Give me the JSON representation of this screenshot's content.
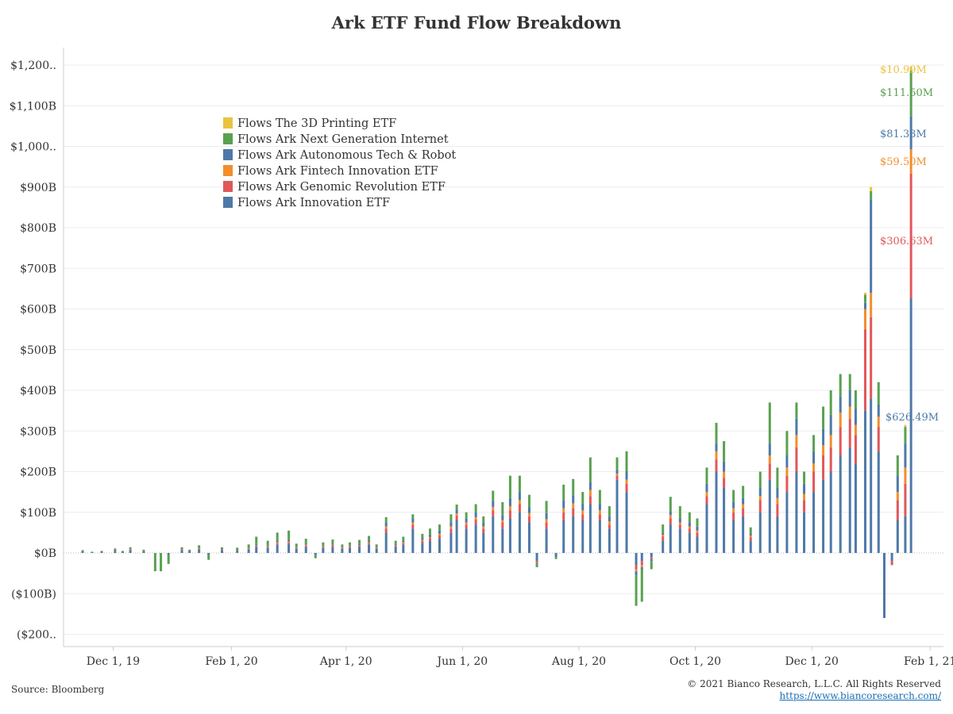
{
  "chart_data": {
    "type": "bar",
    "stacked": true,
    "title": "Ark ETF Fund Flow Breakdown",
    "xlabel": "",
    "ylabel": "",
    "ylim": [
      -200,
      1250
    ],
    "y_ticks": [
      {
        "value": 1200,
        "label": "$1,200.."
      },
      {
        "value": 1100,
        "label": "$1,100B"
      },
      {
        "value": 1000,
        "label": "$1,000.."
      },
      {
        "value": 900,
        "label": "$900B"
      },
      {
        "value": 800,
        "label": "$800B"
      },
      {
        "value": 700,
        "label": "$700B"
      },
      {
        "value": 600,
        "label": "$600B"
      },
      {
        "value": 500,
        "label": "$500B"
      },
      {
        "value": 400,
        "label": "$400B"
      },
      {
        "value": 300,
        "label": "$300B"
      },
      {
        "value": 200,
        "label": "$200B"
      },
      {
        "value": 100,
        "label": "$100B"
      },
      {
        "value": 0,
        "label": "$0B"
      },
      {
        "value": -100,
        "label": "($100B)"
      },
      {
        "value": -200,
        "label": "($200.."
      }
    ],
    "x_ticks": [
      {
        "date": "2019-12-01",
        "label": "Dec 1, 19"
      },
      {
        "date": "2020-02-01",
        "label": "Feb 1, 20"
      },
      {
        "date": "2020-04-01",
        "label": "Apr 1, 20"
      },
      {
        "date": "2020-06-01",
        "label": "Jun 1, 20"
      },
      {
        "date": "2020-08-01",
        "label": "Aug 1, 20"
      },
      {
        "date": "2020-10-01",
        "label": "Oct 1, 20"
      },
      {
        "date": "2020-12-01",
        "label": "Dec 1, 20"
      },
      {
        "date": "2021-02-01",
        "label": "Feb 1, 21"
      }
    ],
    "x_range": [
      "2019-11-05",
      "2021-02-08"
    ],
    "grid": true,
    "legend_position": "top-left",
    "legend": [
      {
        "name": "Flows The 3D Printing ETF",
        "color": "#e8c43e"
      },
      {
        "name": "Flows Ark Next Generation Internet",
        "color": "#59a14f"
      },
      {
        "name": "Flows Ark Autonomous Tech & Robot",
        "color": "#4e79a7"
      },
      {
        "name": "Flows Ark Fintech Innovation ETF",
        "color": "#f28e2b"
      },
      {
        "name": "Flows Ark Genomic Revolution ETF",
        "color": "#e15759"
      },
      {
        "name": "Flows Ark Innovation ETF",
        "color": "#4e79a7"
      }
    ],
    "series_order_bottom_to_top": [
      "Flows Ark Innovation ETF",
      "Flows Ark Genomic Revolution ETF",
      "Flows Ark Fintech Innovation ETF",
      "Flows Ark Autonomous Tech & Robot",
      "Flows Ark Next Generation Internet",
      "Flows The 3D Printing ETF"
    ],
    "bars": [
      {
        "date": "2019-11-15",
        "v": [
          4,
          1,
          0,
          0,
          2,
          0
        ]
      },
      {
        "date": "2019-11-20",
        "v": [
          2,
          0,
          0,
          0,
          1,
          0
        ]
      },
      {
        "date": "2019-11-25",
        "v": [
          3,
          1,
          0,
          0,
          1,
          0
        ]
      },
      {
        "date": "2019-12-02",
        "v": [
          5,
          2,
          0,
          1,
          3,
          0
        ]
      },
      {
        "date": "2019-12-06",
        "v": [
          3,
          0,
          0,
          0,
          2,
          0
        ]
      },
      {
        "date": "2019-12-10",
        "v": [
          6,
          2,
          1,
          1,
          4,
          0
        ]
      },
      {
        "date": "2019-12-17",
        "v": [
          4,
          1,
          0,
          0,
          3,
          0
        ]
      },
      {
        "date": "2019-12-23",
        "v": [
          0,
          0,
          0,
          0,
          -45,
          0
        ]
      },
      {
        "date": "2019-12-26",
        "v": [
          0,
          0,
          0,
          0,
          -45,
          0
        ]
      },
      {
        "date": "2019-12-30",
        "v": [
          -5,
          0,
          0,
          0,
          -22,
          0
        ]
      },
      {
        "date": "2020-01-06",
        "v": [
          6,
          2,
          0,
          1,
          5,
          0
        ]
      },
      {
        "date": "2020-01-10",
        "v": [
          4,
          1,
          0,
          0,
          3,
          0
        ]
      },
      {
        "date": "2020-01-15",
        "v": [
          8,
          2,
          1,
          2,
          6,
          0
        ]
      },
      {
        "date": "2020-01-20",
        "v": [
          -5,
          0,
          0,
          0,
          -12,
          0
        ]
      },
      {
        "date": "2020-01-27",
        "v": [
          6,
          2,
          0,
          1,
          5,
          0
        ]
      },
      {
        "date": "2020-02-04",
        "v": [
          5,
          1,
          0,
          1,
          6,
          0
        ]
      },
      {
        "date": "2020-02-10",
        "v": [
          8,
          2,
          1,
          2,
          8,
          0
        ]
      },
      {
        "date": "2020-02-14",
        "v": [
          15,
          3,
          1,
          3,
          18,
          0
        ]
      },
      {
        "date": "2020-02-20",
        "v": [
          12,
          3,
          1,
          2,
          12,
          0
        ]
      },
      {
        "date": "2020-02-25",
        "v": [
          20,
          4,
          2,
          4,
          20,
          0
        ]
      },
      {
        "date": "2020-03-02",
        "v": [
          22,
          4,
          2,
          4,
          23,
          0
        ]
      },
      {
        "date": "2020-03-06",
        "v": [
          10,
          2,
          1,
          2,
          8,
          0
        ]
      },
      {
        "date": "2020-03-11",
        "v": [
          15,
          3,
          2,
          3,
          12,
          0
        ]
      },
      {
        "date": "2020-03-16",
        "v": [
          -5,
          0,
          0,
          0,
          -8,
          0
        ]
      },
      {
        "date": "2020-03-20",
        "v": [
          12,
          3,
          1,
          2,
          8,
          0
        ]
      },
      {
        "date": "2020-03-25",
        "v": [
          15,
          4,
          1,
          3,
          10,
          0
        ]
      },
      {
        "date": "2020-03-30",
        "v": [
          10,
          2,
          1,
          2,
          6,
          0
        ]
      },
      {
        "date": "2020-04-03",
        "v": [
          12,
          3,
          1,
          2,
          8,
          0
        ]
      },
      {
        "date": "2020-04-08",
        "v": [
          15,
          3,
          1,
          3,
          10,
          0
        ]
      },
      {
        "date": "2020-04-13",
        "v": [
          20,
          4,
          2,
          4,
          12,
          0
        ]
      },
      {
        "date": "2020-04-17",
        "v": [
          10,
          2,
          1,
          2,
          6,
          0
        ]
      },
      {
        "date": "2020-04-22",
        "v": [
          50,
          10,
          5,
          10,
          13,
          0
        ]
      },
      {
        "date": "2020-04-27",
        "v": [
          15,
          3,
          1,
          3,
          8,
          0
        ]
      },
      {
        "date": "2020-05-01",
        "v": [
          20,
          4,
          2,
          4,
          10,
          0
        ]
      },
      {
        "date": "2020-05-06",
        "v": [
          60,
          10,
          5,
          10,
          10,
          0
        ]
      },
      {
        "date": "2020-05-11",
        "v": [
          25,
          5,
          2,
          5,
          10,
          0
        ]
      },
      {
        "date": "2020-05-15",
        "v": [
          30,
          6,
          3,
          6,
          15,
          0
        ]
      },
      {
        "date": "2020-05-20",
        "v": [
          35,
          8,
          4,
          8,
          15,
          0
        ]
      },
      {
        "date": "2020-05-26",
        "v": [
          50,
          10,
          5,
          10,
          20,
          0
        ]
      },
      {
        "date": "2020-05-29",
        "v": [
          80,
          12,
          5,
          10,
          12,
          0
        ]
      },
      {
        "date": "2020-06-03",
        "v": [
          60,
          10,
          5,
          10,
          15,
          0
        ]
      },
      {
        "date": "2020-06-08",
        "v": [
          70,
          12,
          6,
          12,
          20,
          0
        ]
      },
      {
        "date": "2020-06-12",
        "v": [
          50,
          10,
          5,
          10,
          15,
          0
        ]
      },
      {
        "date": "2020-06-17",
        "v": [
          90,
          15,
          8,
          15,
          25,
          0
        ]
      },
      {
        "date": "2020-06-22",
        "v": [
          60,
          15,
          6,
          12,
          32,
          0
        ]
      },
      {
        "date": "2020-06-26",
        "v": [
          85,
          20,
          10,
          20,
          55,
          0
        ]
      },
      {
        "date": "2020-07-01",
        "v": [
          100,
          20,
          10,
          20,
          40,
          0
        ]
      },
      {
        "date": "2020-07-06",
        "v": [
          75,
          15,
          8,
          15,
          30,
          0
        ]
      },
      {
        "date": "2020-07-10",
        "v": [
          -20,
          -5,
          0,
          0,
          -10,
          0
        ]
      },
      {
        "date": "2020-07-15",
        "v": [
          60,
          15,
          8,
          15,
          30,
          0
        ]
      },
      {
        "date": "2020-07-20",
        "v": [
          -10,
          0,
          0,
          0,
          -5,
          0
        ]
      },
      {
        "date": "2020-07-24",
        "v": [
          80,
          20,
          10,
          20,
          38,
          0
        ]
      },
      {
        "date": "2020-07-29",
        "v": [
          90,
          20,
          12,
          20,
          40,
          0
        ]
      },
      {
        "date": "2020-08-03",
        "v": [
          80,
          15,
          10,
          15,
          30,
          0
        ]
      },
      {
        "date": "2020-08-07",
        "v": [
          120,
          20,
          15,
          20,
          60,
          0
        ]
      },
      {
        "date": "2020-08-12",
        "v": [
          80,
          15,
          10,
          15,
          35,
          0
        ]
      },
      {
        "date": "2020-08-17",
        "v": [
          60,
          10,
          8,
          12,
          25,
          0
        ]
      },
      {
        "date": "2020-08-21",
        "v": [
          180,
          10,
          5,
          10,
          30,
          0
        ]
      },
      {
        "date": "2020-08-26",
        "v": [
          150,
          20,
          10,
          20,
          50,
          0
        ]
      },
      {
        "date": "2020-08-31",
        "v": [
          -30,
          -10,
          -5,
          -10,
          -75,
          0
        ]
      },
      {
        "date": "2020-09-03",
        "v": [
          -20,
          -10,
          -5,
          -5,
          -80,
          0
        ]
      },
      {
        "date": "2020-09-08",
        "v": [
          -10,
          -5,
          0,
          -5,
          -20,
          0
        ]
      },
      {
        "date": "2020-09-14",
        "v": [
          30,
          10,
          5,
          5,
          20,
          0
        ]
      },
      {
        "date": "2020-09-18",
        "v": [
          70,
          15,
          8,
          10,
          35,
          0
        ]
      },
      {
        "date": "2020-09-23",
        "v": [
          60,
          10,
          5,
          10,
          30,
          0
        ]
      },
      {
        "date": "2020-09-28",
        "v": [
          50,
          10,
          5,
          10,
          25,
          0
        ]
      },
      {
        "date": "2020-10-02",
        "v": [
          40,
          10,
          5,
          10,
          20,
          0
        ]
      },
      {
        "date": "2020-10-07",
        "v": [
          120,
          20,
          10,
          20,
          40,
          0
        ]
      },
      {
        "date": "2020-10-12",
        "v": [
          200,
          30,
          20,
          20,
          50,
          0
        ]
      },
      {
        "date": "2020-10-16",
        "v": [
          160,
          25,
          15,
          25,
          50,
          0
        ]
      },
      {
        "date": "2020-10-21",
        "v": [
          80,
          20,
          10,
          15,
          30,
          0
        ]
      },
      {
        "date": "2020-10-26",
        "v": [
          90,
          20,
          10,
          15,
          30,
          0
        ]
      },
      {
        "date": "2020-10-30",
        "v": [
          30,
          8,
          5,
          5,
          15,
          0
        ]
      },
      {
        "date": "2020-11-04",
        "v": [
          100,
          30,
          10,
          20,
          40,
          0
        ]
      },
      {
        "date": "2020-11-09",
        "v": [
          180,
          40,
          20,
          30,
          100,
          0
        ]
      },
      {
        "date": "2020-11-13",
        "v": [
          90,
          30,
          15,
          25,
          50,
          0
        ]
      },
      {
        "date": "2020-11-18",
        "v": [
          150,
          40,
          20,
          30,
          60,
          0
        ]
      },
      {
        "date": "2020-11-23",
        "v": [
          200,
          60,
          30,
          40,
          40,
          0
        ]
      },
      {
        "date": "2020-11-27",
        "v": [
          100,
          30,
          15,
          25,
          30,
          0
        ]
      },
      {
        "date": "2020-12-02",
        "v": [
          150,
          50,
          20,
          30,
          40,
          0
        ]
      },
      {
        "date": "2020-12-07",
        "v": [
          180,
          60,
          25,
          40,
          55,
          0
        ]
      },
      {
        "date": "2020-12-11",
        "v": [
          200,
          60,
          30,
          50,
          60,
          0
        ]
      },
      {
        "date": "2020-12-16",
        "v": [
          240,
          70,
          35,
          40,
          55,
          0
        ]
      },
      {
        "date": "2020-12-21",
        "v": [
          260,
          70,
          30,
          40,
          40,
          0
        ]
      },
      {
        "date": "2020-12-24",
        "v": [
          220,
          70,
          25,
          40,
          45,
          0
        ]
      },
      {
        "date": "2020-12-29",
        "v": [
          350,
          200,
          50,
          15,
          20,
          5
        ]
      },
      {
        "date": "2021-01-01",
        "v": [
          380,
          200,
          60,
          230,
          20,
          10
        ]
      },
      {
        "date": "2021-01-05",
        "v": [
          250,
          60,
          25,
          30,
          55,
          0
        ]
      },
      {
        "date": "2021-01-08",
        "v": [
          -160,
          0,
          0,
          0,
          0,
          0
        ]
      },
      {
        "date": "2021-01-12",
        "v": [
          -20,
          -10,
          0,
          0,
          0,
          0
        ]
      },
      {
        "date": "2021-01-15",
        "v": [
          80,
          50,
          20,
          40,
          50,
          0
        ]
      },
      {
        "date": "2021-01-19",
        "v": [
          90,
          80,
          40,
          60,
          40,
          5
        ]
      },
      {
        "date": "2021-01-22",
        "v": [
          626.49,
          306.63,
          59.5,
          81.33,
          111.5,
          10.99
        ]
      }
    ],
    "annotations": [
      {
        "label": "$10.99M",
        "series": "Flows The 3D Printing ETF",
        "color": "#e8c43e"
      },
      {
        "label": "$111.50M",
        "series": "Flows Ark Next Generation Internet",
        "color": "#59a14f"
      },
      {
        "label": "$81.33M",
        "series": "Flows Ark Autonomous Tech & Robot",
        "color": "#4e79a7"
      },
      {
        "label": "$59.50M",
        "series": "Flows Ark Fintech Innovation ETF",
        "color": "#f28e2b"
      },
      {
        "label": "$306.63M",
        "series": "Flows Ark Genomic Revolution ETF",
        "color": "#e15759"
      },
      {
        "label": "$626.49M",
        "series": "Flows Ark Innovation ETF",
        "color": "#4e79a7"
      }
    ]
  },
  "footer": {
    "source": "Source: Bloomberg",
    "copyright": "© 2021 Bianco Research, L.L.C. All Rights Reserved",
    "url": "https://www.biancoresearch.com/"
  }
}
